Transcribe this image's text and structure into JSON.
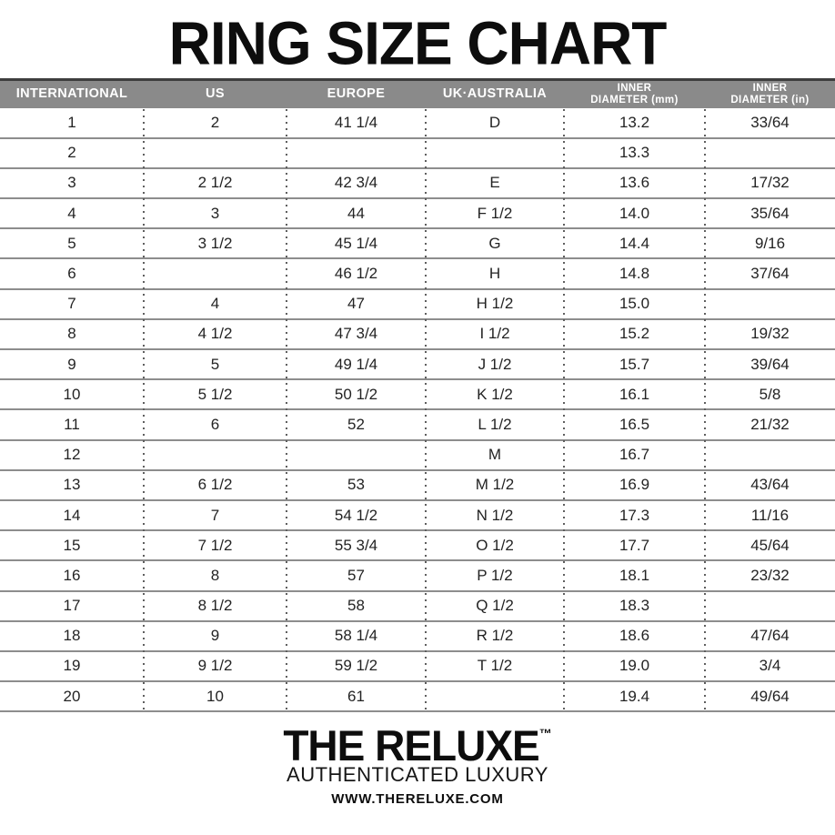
{
  "page": {
    "title": "RING SIZE CHART"
  },
  "table": {
    "header_lines": [
      [
        "INTERNATIONAL"
      ],
      [
        "US"
      ],
      [
        "EUROPE"
      ],
      [
        "UK·AUSTRALIA"
      ],
      [
        "INNER",
        "DIAMETER (mm)"
      ],
      [
        "INNER",
        "DIAMETER (in)"
      ]
    ]
  },
  "chart_data": {
    "type": "table",
    "title": "RING SIZE CHART",
    "columns": [
      "INTERNATIONAL",
      "US",
      "EUROPE",
      "UK·AUSTRALIA",
      "INNER DIAMETER (mm)",
      "INNER DIAMETER (in)"
    ],
    "rows": [
      [
        "1",
        "2",
        "41 1/4",
        "D",
        "13.2",
        "33/64"
      ],
      [
        "2",
        "",
        "",
        "",
        "13.3",
        ""
      ],
      [
        "3",
        "2 1/2",
        "42 3/4",
        "E",
        "13.6",
        "17/32"
      ],
      [
        "4",
        "3",
        "44",
        "F 1/2",
        "14.0",
        "35/64"
      ],
      [
        "5",
        "3 1/2",
        "45 1/4",
        "G",
        "14.4",
        "9/16"
      ],
      [
        "6",
        "",
        "46 1/2",
        "H",
        "14.8",
        "37/64"
      ],
      [
        "7",
        "4",
        "47",
        "H 1/2",
        "15.0",
        ""
      ],
      [
        "8",
        "4 1/2",
        "47 3/4",
        "I 1/2",
        "15.2",
        "19/32"
      ],
      [
        "9",
        "5",
        "49 1/4",
        "J 1/2",
        "15.7",
        "39/64"
      ],
      [
        "10",
        "5 1/2",
        "50 1/2",
        "K 1/2",
        "16.1",
        "5/8"
      ],
      [
        "11",
        "6",
        "52",
        "L 1/2",
        "16.5",
        "21/32"
      ],
      [
        "12",
        "",
        "",
        "M",
        "16.7",
        ""
      ],
      [
        "13",
        "6 1/2",
        "53",
        "M 1/2",
        "16.9",
        "43/64"
      ],
      [
        "14",
        "7",
        "54 1/2",
        "N 1/2",
        "17.3",
        "11/16"
      ],
      [
        "15",
        "7 1/2",
        "55 3/4",
        "O 1/2",
        "17.7",
        "45/64"
      ],
      [
        "16",
        "8",
        "57",
        "P 1/2",
        "18.1",
        "23/32"
      ],
      [
        "17",
        "8 1/2",
        "58",
        "Q 1/2",
        "18.3",
        ""
      ],
      [
        "18",
        "9",
        "58 1/4",
        "R 1/2",
        "18.6",
        "47/64"
      ],
      [
        "19",
        "9 1/2",
        "59 1/2",
        "T 1/2",
        "19.0",
        "3/4"
      ],
      [
        "20",
        "10",
        "61",
        "",
        "19.4",
        "49/64"
      ]
    ],
    "layout": {
      "grid": "horizontal-rules-and-dotted-column-separators",
      "header_position": "top"
    }
  },
  "footer": {
    "brand": "THE RELUXE",
    "trademark": "™",
    "tagline": "AUTHENTICATED LUXURY",
    "website": "WWW.THERELUXE.COM"
  },
  "colors": {
    "header_bg": "#8a8a8a",
    "header_top_border": "#3e3e3e",
    "header_text": "#ffffff",
    "row_line": "#8d8d8d",
    "dot_separator": "#5f5f5f",
    "text": "#1c1c1c",
    "background": "#ffffff"
  }
}
